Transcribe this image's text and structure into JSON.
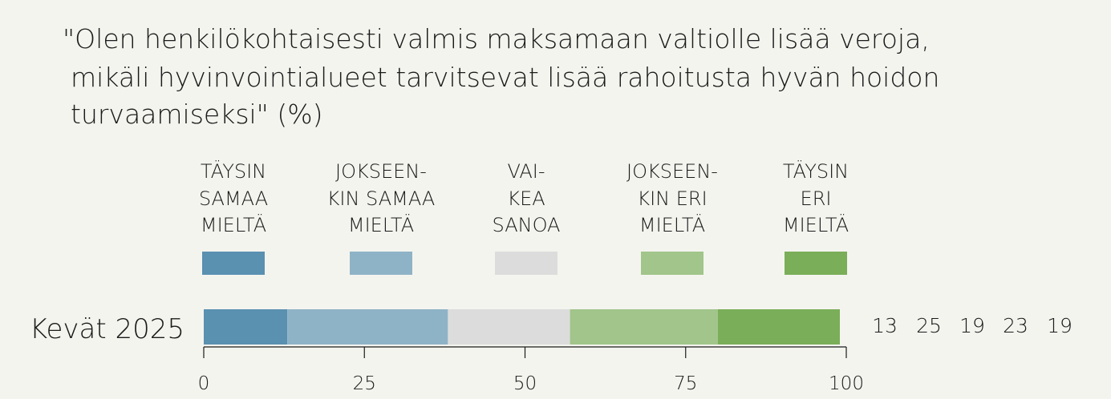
{
  "chart_data": {
    "type": "bar",
    "stacked": true,
    "orientation": "horizontal",
    "title_lines": [
      "\"Olen henkilökohtaisesti valmis maksamaan valtiolle lisää veroja,",
      "mikäli hyvinvointialueet tarvitsevat lisää rahoitusta hyvän hoidon",
      "turvaamiseksi\" (%)"
    ],
    "categories": [
      "Kevät 2025"
    ],
    "series": [
      {
        "name_lines": [
          "TÄYSIN",
          "SAMAA",
          "MIELTÄ"
        ],
        "values": [
          13
        ],
        "color": "#5a90b0"
      },
      {
        "name_lines": [
          "JOKSEEN-",
          "KIN SAMAA",
          "MIELTÄ"
        ],
        "values": [
          25
        ],
        "color": "#8fb3c6"
      },
      {
        "name_lines": [
          "VAI-",
          "KEA",
          "SANOA"
        ],
        "values": [
          19
        ],
        "color": "#dcdcdc"
      },
      {
        "name_lines": [
          "JOKSEEN-",
          "KIN ERI",
          "MIELTÄ"
        ],
        "values": [
          23
        ],
        "color": "#a1c58a"
      },
      {
        "name_lines": [
          "TÄYSIN",
          "ERI",
          "MIELTÄ"
        ],
        "values": [
          19
        ],
        "color": "#7aae58"
      }
    ],
    "xlim": [
      0,
      100
    ],
    "xticks": [
      "0",
      "25",
      "50",
      "75",
      "100"
    ],
    "grid": false,
    "legend_position": "top"
  }
}
